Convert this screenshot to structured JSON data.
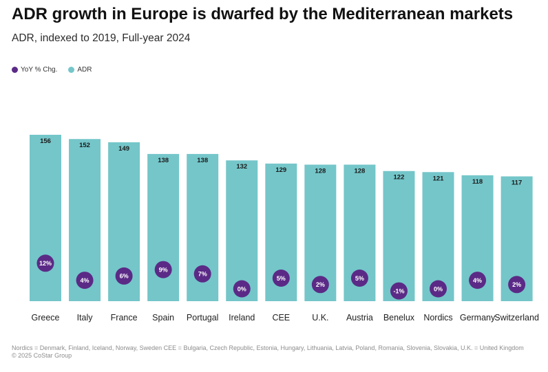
{
  "chart_data": {
    "type": "bar",
    "title": "ADR growth in Europe is dwarfed by the Mediterranean markets",
    "subtitle": "ADR, indexed to 2019, Full-year 2024",
    "legend": [
      {
        "name": "YoY % Chg.",
        "color": "#5b2a86"
      },
      {
        "name": "ADR",
        "color": "#74c6c9"
      }
    ],
    "legend_position": "top-left",
    "categories": [
      "Greece",
      "Italy",
      "France",
      "Spain",
      "Portugal",
      "Ireland",
      "CEE",
      "U.K.",
      "Austria",
      "Benelux",
      "Nordics",
      "Germany",
      "Switzerland"
    ],
    "series": [
      {
        "name": "ADR",
        "values": [
          156,
          152,
          149,
          138,
          138,
          132,
          129,
          128,
          128,
          122,
          121,
          118,
          117
        ]
      },
      {
        "name": "YoY % Chg.",
        "values": [
          12,
          4,
          6,
          9,
          7,
          0,
          5,
          2,
          5,
          -1,
          0,
          4,
          2
        ]
      }
    ],
    "data_labels_adr": [
      "156",
      "152",
      "149",
      "138",
      "138",
      "132",
      "129",
      "128",
      "128",
      "122",
      "121",
      "118",
      "117"
    ],
    "data_labels_yoy": [
      "12%",
      "4%",
      "6%",
      "9%",
      "7%",
      "0%",
      "5%",
      "2%",
      "5%",
      "-1%",
      "0%",
      "4%",
      "2%"
    ],
    "grid": false
  },
  "footnote": {
    "note": "Nordics = Denmark, Finland, Iceland, Norway, Sweden CEE = Bulgaria, Czech Republic, Estonia, Hungary, Lithuania, Latvia, Poland, Romania, Slovenia, Slovakia, U.K. = United Kingdom",
    "copyright": "© 2025 CoStar Group"
  }
}
